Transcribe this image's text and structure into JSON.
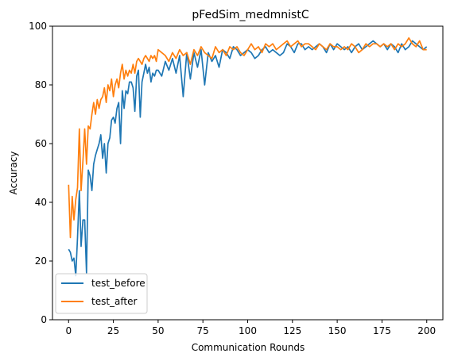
{
  "chart_data": {
    "type": "line",
    "title": "pFedSim_medmnistC",
    "xlabel": "Communication Rounds",
    "ylabel": "Accuracy",
    "xlim": [
      -9,
      209
    ],
    "ylim": [
      0,
      100
    ],
    "xticks": [
      0,
      25,
      50,
      75,
      100,
      125,
      150,
      175,
      200
    ],
    "yticks": [
      0,
      20,
      40,
      60,
      80,
      100
    ],
    "grid": false,
    "legend_position": "lower-left",
    "series": [
      {
        "name": "test_before",
        "color": "#1f77b4",
        "x": [
          0,
          1,
          2,
          3,
          4,
          5,
          6,
          7,
          8,
          9,
          10,
          11,
          12,
          13,
          14,
          15,
          16,
          17,
          18,
          19,
          20,
          21,
          22,
          23,
          24,
          25,
          26,
          27,
          28,
          29,
          30,
          31,
          32,
          33,
          34,
          35,
          36,
          37,
          38,
          39,
          40,
          41,
          42,
          43,
          44,
          45,
          46,
          47,
          48,
          49,
          50,
          52,
          54,
          56,
          58,
          60,
          62,
          64,
          66,
          68,
          70,
          72,
          74,
          76,
          78,
          80,
          82,
          84,
          86,
          88,
          90,
          92,
          94,
          96,
          98,
          100,
          102,
          104,
          106,
          108,
          110,
          112,
          114,
          116,
          118,
          120,
          122,
          124,
          126,
          128,
          130,
          132,
          134,
          136,
          138,
          140,
          142,
          144,
          146,
          148,
          150,
          152,
          154,
          156,
          158,
          160,
          162,
          164,
          166,
          168,
          170,
          172,
          174,
          176,
          178,
          180,
          182,
          184,
          186,
          188,
          190,
          192,
          194,
          196,
          198,
          200
        ],
        "y": [
          24,
          23,
          20,
          21,
          15,
          28,
          44,
          25,
          34,
          34,
          16,
          51,
          49,
          44,
          53,
          56,
          58,
          60,
          63,
          55,
          60,
          50,
          60,
          62,
          68,
          69,
          67,
          72,
          74,
          60,
          78,
          72,
          78,
          77,
          81,
          81,
          79,
          71,
          83,
          85,
          69,
          81,
          84,
          87,
          84,
          86,
          81,
          84,
          83,
          85,
          85,
          83,
          88,
          85,
          89,
          84,
          90,
          76,
          91,
          82,
          91,
          86,
          92,
          80,
          91,
          88,
          90,
          86,
          92,
          91,
          89,
          93,
          92,
          90,
          91,
          92,
          91,
          89,
          90,
          92,
          93,
          91,
          92,
          91,
          90,
          91,
          94,
          93,
          91,
          94,
          94,
          92,
          93,
          92,
          93,
          94,
          93,
          91,
          94,
          92,
          94,
          93,
          92,
          93,
          91,
          93,
          94,
          92,
          93,
          94,
          95,
          94,
          93,
          94,
          92,
          94,
          93,
          91,
          94,
          92,
          93,
          95,
          94,
          93,
          92,
          93
        ]
      },
      {
        "name": "test_after",
        "color": "#ff7f0e",
        "x": [
          0,
          1,
          2,
          3,
          4,
          5,
          6,
          7,
          8,
          9,
          10,
          11,
          12,
          13,
          14,
          15,
          16,
          17,
          18,
          19,
          20,
          21,
          22,
          23,
          24,
          25,
          26,
          27,
          28,
          29,
          30,
          31,
          32,
          33,
          34,
          35,
          36,
          37,
          38,
          39,
          40,
          41,
          42,
          43,
          44,
          45,
          46,
          47,
          48,
          49,
          50,
          52,
          54,
          56,
          58,
          60,
          62,
          64,
          66,
          68,
          70,
          72,
          74,
          76,
          78,
          80,
          82,
          84,
          86,
          88,
          90,
          92,
          94,
          96,
          98,
          100,
          102,
          104,
          106,
          108,
          110,
          112,
          114,
          116,
          118,
          120,
          122,
          124,
          126,
          128,
          130,
          132,
          134,
          136,
          138,
          140,
          142,
          144,
          146,
          148,
          150,
          152,
          154,
          156,
          158,
          160,
          162,
          164,
          166,
          168,
          170,
          172,
          174,
          176,
          178,
          180,
          182,
          184,
          186,
          188,
          190,
          192,
          194,
          196,
          198,
          200
        ],
        "y": [
          46,
          28,
          42,
          34,
          41,
          45,
          65,
          44,
          54,
          65,
          53,
          66,
          65,
          70,
          74,
          70,
          75,
          72,
          75,
          76,
          79,
          74,
          80,
          78,
          82,
          76,
          80,
          82,
          79,
          84,
          87,
          82,
          85,
          83,
          85,
          84,
          87,
          84,
          88,
          89,
          88,
          87,
          89,
          90,
          89,
          88,
          90,
          89,
          90,
          88,
          92,
          91,
          90,
          88,
          91,
          89,
          92,
          90,
          91,
          87,
          92,
          90,
          93,
          91,
          90,
          89,
          93,
          91,
          92,
          90,
          93,
          92,
          93,
          91,
          90,
          92,
          94,
          92,
          93,
          91,
          94,
          93,
          94,
          92,
          93,
          94,
          95,
          93,
          94,
          95,
          93,
          94,
          94,
          93,
          92,
          94,
          93,
          92,
          94,
          93,
          93,
          92,
          93,
          92,
          94,
          93,
          91,
          92,
          94,
          93,
          94,
          94,
          93,
          94,
          93,
          94,
          92,
          94,
          93,
          94,
          96,
          94,
          93,
          95,
          92,
          92
        ]
      }
    ]
  }
}
